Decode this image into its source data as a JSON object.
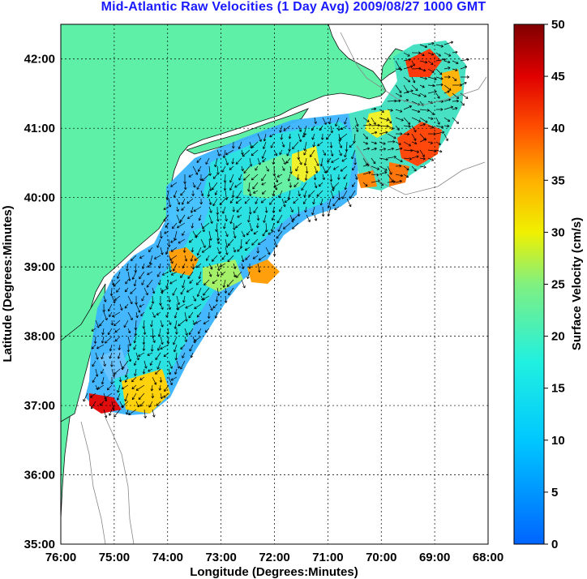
{
  "title": "Mid-Atlantic Raw Velocities (1 Day Avg) 2009/08/27 1000 GMT",
  "map": {
    "xlabel": "Longitude (Degrees:Minutes)",
    "ylabel": "Latitude (Degrees:Minutes)",
    "x_ticks": [
      "76:00",
      "75:00",
      "74:00",
      "73:00",
      "72:00",
      "71:00",
      "70:00",
      "69:00",
      "68:00"
    ],
    "y_ticks": [
      "42:00",
      "41:00",
      "40:00",
      "39:00",
      "38:00",
      "37:00",
      "36:00",
      "35:00"
    ],
    "xlim": [
      -76,
      -68
    ],
    "ylim": [
      35,
      42.5
    ],
    "land_color": "#5ff0a8",
    "grid": "dotted"
  },
  "colorbar": {
    "label": "Surface Velocity (cm/s)",
    "ticks": [
      "0",
      "5",
      "10",
      "15",
      "20",
      "25",
      "30",
      "35",
      "40",
      "45",
      "50"
    ],
    "range": [
      0,
      50
    ],
    "colormap": "jet"
  }
}
